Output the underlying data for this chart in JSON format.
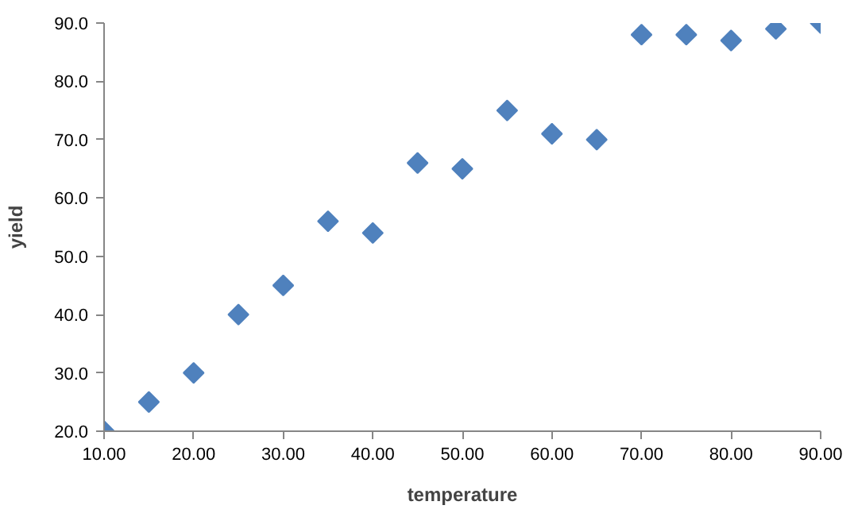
{
  "chart_data": {
    "type": "scatter",
    "xlabel": "temperature",
    "ylabel": "yield",
    "x": [
      10,
      15,
      20,
      25,
      30,
      35,
      40,
      45,
      50,
      55,
      60,
      65,
      70,
      75,
      80,
      85,
      90
    ],
    "series": [
      {
        "color": "#4f81bd",
        "values": [
          20,
          25,
          30,
          40,
          45,
          56,
          54,
          66,
          65,
          75,
          71,
          70,
          88,
          88,
          87,
          89,
          90
        ]
      }
    ],
    "xlim": [
      10,
      90
    ],
    "ylim": [
      20,
      90
    ],
    "xticks": [
      {
        "value": 10,
        "label": "10.00"
      },
      {
        "value": 20,
        "label": "20.00"
      },
      {
        "value": 30,
        "label": "30.00"
      },
      {
        "value": 40,
        "label": "40.00"
      },
      {
        "value": 50,
        "label": "50.00"
      },
      {
        "value": 60,
        "label": "60.00"
      },
      {
        "value": 70,
        "label": "70.00"
      },
      {
        "value": 80,
        "label": "80.00"
      },
      {
        "value": 90,
        "label": "90.00"
      }
    ],
    "yticks": [
      {
        "value": 20,
        "label": "20.0"
      },
      {
        "value": 30,
        "label": "30.0"
      },
      {
        "value": 40,
        "label": "40.0"
      },
      {
        "value": 50,
        "label": "50.0"
      },
      {
        "value": 60,
        "label": "60.0"
      },
      {
        "value": 70,
        "label": "70.0"
      },
      {
        "value": 80,
        "label": "80.0"
      },
      {
        "value": 90,
        "label": "90.0"
      }
    ],
    "grid": false,
    "marker": "diamond"
  }
}
